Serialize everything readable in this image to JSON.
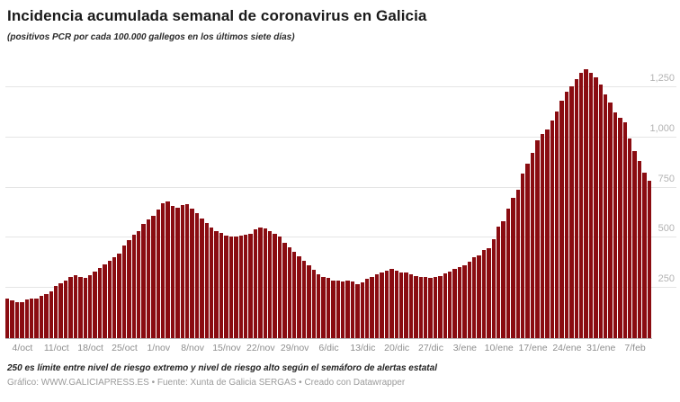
{
  "header": {
    "title": "Incidencia acumulada semanal de coronavirus en Galicia",
    "subtitle": "(positivos PCR por cada 100.000 gallegos en los últimos siete días)"
  },
  "footer": {
    "note": "250 es límite entre nivel de riesgo extremo y nivel de riesgo alto según el semáforo de alertas estatal",
    "byline": "Gráfico: WWW.GALICIAPRESS.ES • Fuente: Xunta de Galicia SERGAS • Creado con Datawrapper"
  },
  "colors": {
    "bar": "#8a0c11",
    "gridline": "#e5e5e5",
    "baseline": "#b8b8b8",
    "y_label": "#b3b3b3",
    "x_label": "#8e8e8e"
  },
  "chart_data": {
    "type": "bar",
    "title": "Incidencia acumulada semanal de coronavirus en Galicia",
    "subtitle": "(positivos PCR por cada 100.000 gallegos en los últimos siete días)",
    "grid": "horizontal",
    "legend": "none",
    "y_axis_side": "right",
    "ylim": [
      0,
      1415
    ],
    "y_ticks": [
      250,
      500,
      750,
      1000,
      1250
    ],
    "x_tick_labels": [
      "4/oct",
      "11/oct",
      "18/oct",
      "25/oct",
      "1/nov",
      "8/nov",
      "15/nov",
      "22/nov",
      "29/nov",
      "6/dic",
      "13/dic",
      "20/dic",
      "27/dic",
      "3/ene",
      "10/ene",
      "17/ene",
      "24/ene",
      "31/ene",
      "7/feb"
    ],
    "x_tick_indices": [
      3,
      10,
      17,
      24,
      31,
      38,
      45,
      52,
      59,
      66,
      73,
      80,
      87,
      94,
      101,
      108,
      115,
      122,
      129
    ],
    "x": [
      "1/oct",
      "2/oct",
      "3/oct",
      "4/oct",
      "5/oct",
      "6/oct",
      "7/oct",
      "8/oct",
      "9/oct",
      "10/oct",
      "11/oct",
      "12/oct",
      "13/oct",
      "14/oct",
      "15/oct",
      "16/oct",
      "17/oct",
      "18/oct",
      "19/oct",
      "20/oct",
      "21/oct",
      "22/oct",
      "23/oct",
      "24/oct",
      "25/oct",
      "26/oct",
      "27/oct",
      "28/oct",
      "29/oct",
      "30/oct",
      "31/oct",
      "1/nov",
      "2/nov",
      "3/nov",
      "4/nov",
      "5/nov",
      "6/nov",
      "7/nov",
      "8/nov",
      "9/nov",
      "10/nov",
      "11/nov",
      "12/nov",
      "13/nov",
      "14/nov",
      "15/nov",
      "16/nov",
      "17/nov",
      "18/nov",
      "19/nov",
      "20/nov",
      "21/nov",
      "22/nov",
      "23/nov",
      "24/nov",
      "25/nov",
      "26/nov",
      "27/nov",
      "28/nov",
      "29/nov",
      "30/nov",
      "1/dic",
      "2/dic",
      "3/dic",
      "4/dic",
      "5/dic",
      "6/dic",
      "7/dic",
      "8/dic",
      "9/dic",
      "10/dic",
      "11/dic",
      "12/dic",
      "13/dic",
      "14/dic",
      "15/dic",
      "16/dic",
      "17/dic",
      "18/dic",
      "19/dic",
      "20/dic",
      "21/dic",
      "22/dic",
      "23/dic",
      "24/dic",
      "25/dic",
      "26/dic",
      "27/dic",
      "28/dic",
      "29/dic",
      "30/dic",
      "31/dic",
      "1/ene",
      "2/ene",
      "3/ene",
      "4/ene",
      "5/ene",
      "6/ene",
      "7/ene",
      "8/ene",
      "9/ene",
      "10/ene",
      "11/ene",
      "12/ene",
      "13/ene",
      "14/ene",
      "15/ene",
      "16/ene",
      "17/ene",
      "18/ene",
      "19/ene",
      "20/ene",
      "21/ene",
      "22/ene",
      "23/ene",
      "24/ene",
      "25/ene",
      "26/ene",
      "27/ene",
      "28/ene",
      "29/ene",
      "30/ene",
      "31/ene",
      "1/feb",
      "2/feb",
      "3/feb",
      "4/feb",
      "5/feb",
      "6/feb",
      "7/feb",
      "8/feb",
      "9/feb",
      "10/feb"
    ],
    "values": [
      198,
      187,
      181,
      179,
      191,
      196,
      198,
      209,
      221,
      233,
      258,
      273,
      288,
      305,
      315,
      303,
      300,
      313,
      333,
      348,
      367,
      385,
      403,
      422,
      460,
      490,
      517,
      534,
      567,
      591,
      609,
      640,
      670,
      680,
      660,
      650,
      662,
      666,
      645,
      624,
      597,
      572,
      550,
      534,
      523,
      512,
      508,
      505,
      512,
      517,
      520,
      542,
      553,
      545,
      532,
      520,
      505,
      475,
      452,
      430,
      408,
      385,
      363,
      340,
      318,
      303,
      299,
      288,
      285,
      284,
      287,
      281,
      270,
      276,
      296,
      303,
      318,
      328,
      337,
      344,
      337,
      328,
      326,
      318,
      310,
      303,
      303,
      299,
      303,
      310,
      322,
      333,
      344,
      352,
      363,
      379,
      401,
      412,
      438,
      446,
      494,
      554,
      584,
      646,
      699,
      739,
      821,
      868,
      922,
      984,
      1016,
      1040,
      1085,
      1130,
      1180,
      1225,
      1255,
      1290,
      1320,
      1340,
      1320,
      1300,
      1265,
      1215,
      1175,
      1125,
      1095,
      1075,
      995,
      930,
      883,
      825,
      785
    ]
  }
}
